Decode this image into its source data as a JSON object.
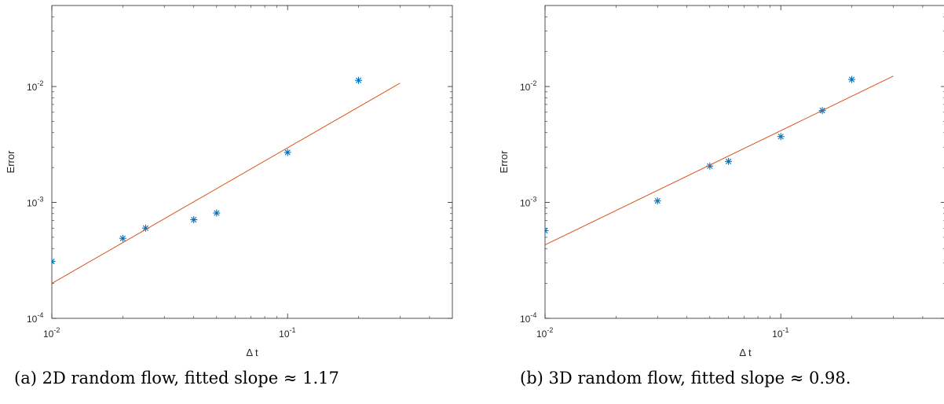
{
  "colors": {
    "marker": "#0072bd",
    "fit_line": "#d95319",
    "axes": "#262626",
    "background": "#ffffff"
  },
  "chart_data": [
    {
      "type": "scatter",
      "caption": "(a) 2D random flow, fitted slope ≈ 1.17",
      "xlabel": "Δ t",
      "ylabel": "Error",
      "xscale": "log",
      "yscale": "log",
      "xlim": [
        0.01,
        0.5
      ],
      "ylim": [
        0.0001,
        0.05
      ],
      "xticks": [
        {
          "base": "10",
          "exp": "-2",
          "value": 0.01
        },
        {
          "base": "10",
          "exp": "-1",
          "value": 0.1
        }
      ],
      "yticks": [
        {
          "base": "10",
          "exp": "-4",
          "value": 0.0001
        },
        {
          "base": "10",
          "exp": "-3",
          "value": 0.001
        },
        {
          "base": "10",
          "exp": "-2",
          "value": 0.01
        }
      ],
      "grid": false,
      "series": [
        {
          "kind": "markers",
          "marker": "asterisk",
          "x": [
            0.01,
            0.02,
            0.025,
            0.04,
            0.05,
            0.1,
            0.2
          ],
          "y": [
            0.00031,
            0.00049,
            0.0006,
            0.00071,
            0.00081,
            0.0027,
            0.0113
          ]
        },
        {
          "kind": "fit-line",
          "x": [
            0.01,
            0.3
          ],
          "y": [
            0.0002,
            0.0107
          ]
        }
      ]
    },
    {
      "type": "scatter",
      "caption": "(b) 3D random flow, fitted slope ≈ 0.98.",
      "xlabel": "Δ t",
      "ylabel": "Error",
      "xscale": "log",
      "yscale": "log",
      "xlim": [
        0.01,
        0.5
      ],
      "ylim": [
        0.0001,
        0.05
      ],
      "xticks": [
        {
          "base": "10",
          "exp": "-2",
          "value": 0.01
        },
        {
          "base": "10",
          "exp": "-1",
          "value": 0.1
        }
      ],
      "yticks": [
        {
          "base": "10",
          "exp": "-4",
          "value": 0.0001
        },
        {
          "base": "10",
          "exp": "-3",
          "value": 0.001
        },
        {
          "base": "10",
          "exp": "-2",
          "value": 0.01
        }
      ],
      "grid": false,
      "series": [
        {
          "kind": "markers",
          "marker": "asterisk",
          "x": [
            0.01,
            0.03,
            0.05,
            0.06,
            0.1,
            0.15,
            0.2
          ],
          "y": [
            0.00057,
            0.00103,
            0.00206,
            0.00226,
            0.0037,
            0.0062,
            0.0115
          ]
        },
        {
          "kind": "fit-line",
          "x": [
            0.01,
            0.3
          ],
          "y": [
            0.00043,
            0.0123
          ]
        }
      ]
    }
  ]
}
